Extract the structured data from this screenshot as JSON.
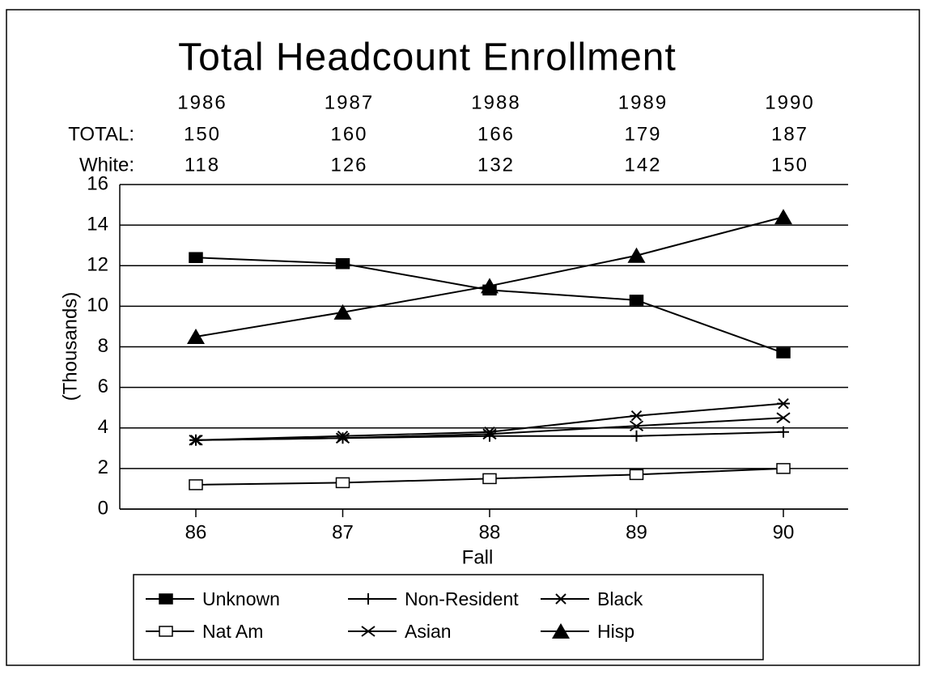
{
  "chart_data": {
    "type": "line",
    "title": "Total Headcount Enrollment",
    "header_table": {
      "columns": [
        "1986",
        "1987",
        "1988",
        "1989",
        "1990"
      ],
      "rows": [
        {
          "label": "TOTAL:",
          "values": [
            150,
            160,
            166,
            179,
            187
          ]
        },
        {
          "label": "White:",
          "values": [
            118,
            126,
            132,
            142,
            150
          ]
        }
      ]
    },
    "y_label": "(Thousands)",
    "x_label": "Fall",
    "categories": [
      "86",
      "87",
      "88",
      "89",
      "90"
    ],
    "ylim": [
      0,
      16
    ],
    "yticks": [
      0,
      2,
      4,
      6,
      8,
      10,
      12,
      14,
      16
    ],
    "grid": true,
    "legend": "bottom",
    "series": [
      {
        "name": "Unknown",
        "color": "#000000",
        "marker": "square-filled",
        "values": [
          12.4,
          12.1,
          10.8,
          10.3,
          7.7
        ]
      },
      {
        "name": "Non-Resident",
        "color": "#000000",
        "marker": "plus",
        "values": [
          3.4,
          3.5,
          3.6,
          3.6,
          3.8
        ]
      },
      {
        "name": "Black",
        "color": "#000000",
        "marker": "asterisk",
        "values": [
          3.4,
          3.6,
          3.8,
          4.6,
          5.2
        ]
      },
      {
        "name": "Nat Am",
        "color": "#000000",
        "marker": "square-open",
        "values": [
          1.2,
          1.3,
          1.5,
          1.7,
          2.0
        ]
      },
      {
        "name": "Asian",
        "color": "#000000",
        "marker": "x",
        "values": [
          3.4,
          3.5,
          3.7,
          4.1,
          4.5
        ]
      },
      {
        "name": "Hisp",
        "color": "#000000",
        "marker": "triangle-filled",
        "values": [
          8.5,
          9.7,
          11.0,
          12.5,
          14.4
        ]
      }
    ]
  }
}
